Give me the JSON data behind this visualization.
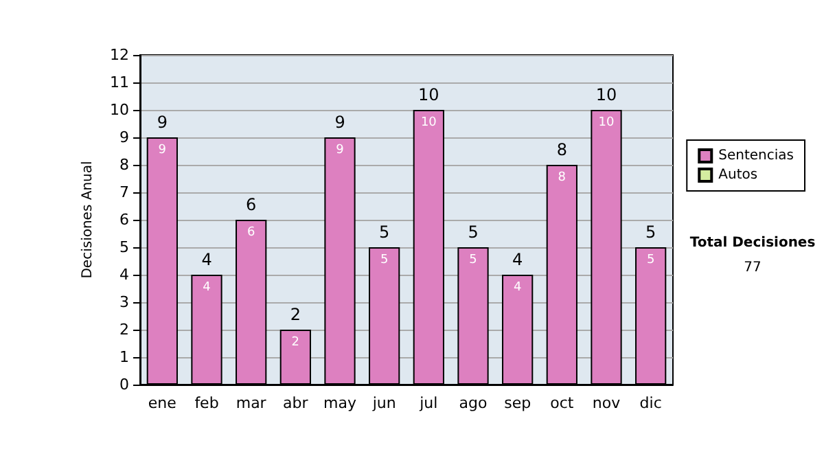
{
  "chart_data": {
    "type": "bar",
    "ylabel": "Decisiones Anual",
    "categories": [
      "ene",
      "feb",
      "mar",
      "abr",
      "may",
      "jun",
      "jul",
      "ago",
      "sep",
      "oct",
      "nov",
      "dic"
    ],
    "series": [
      {
        "name": "Sentencias",
        "color": "#dd80c0",
        "values": [
          9,
          4,
          6,
          2,
          9,
          5,
          10,
          5,
          4,
          8,
          10,
          5
        ],
        "value_labels": [
          "9",
          "4",
          "6",
          "2",
          "9",
          "5",
          "10",
          "5",
          "4",
          "8",
          "10",
          "5"
        ]
      },
      {
        "name": "Autos",
        "color": "#d4eca0",
        "values": [
          0,
          0,
          0,
          0,
          0,
          0,
          0,
          0,
          0,
          0,
          0,
          0
        ]
      }
    ],
    "stacked": true,
    "totals": [
      "9",
      "4",
      "6",
      "2",
      "9",
      "5",
      "10",
      "5",
      "4",
      "8",
      "10",
      "5"
    ],
    "ylim": [
      0,
      12
    ],
    "yticks": [
      0,
      1,
      2,
      3,
      4,
      5,
      6,
      7,
      8,
      9,
      10,
      11,
      12
    ],
    "grid": "y",
    "legend": "right",
    "annotations": [
      "Total Decisiones",
      "77"
    ]
  }
}
